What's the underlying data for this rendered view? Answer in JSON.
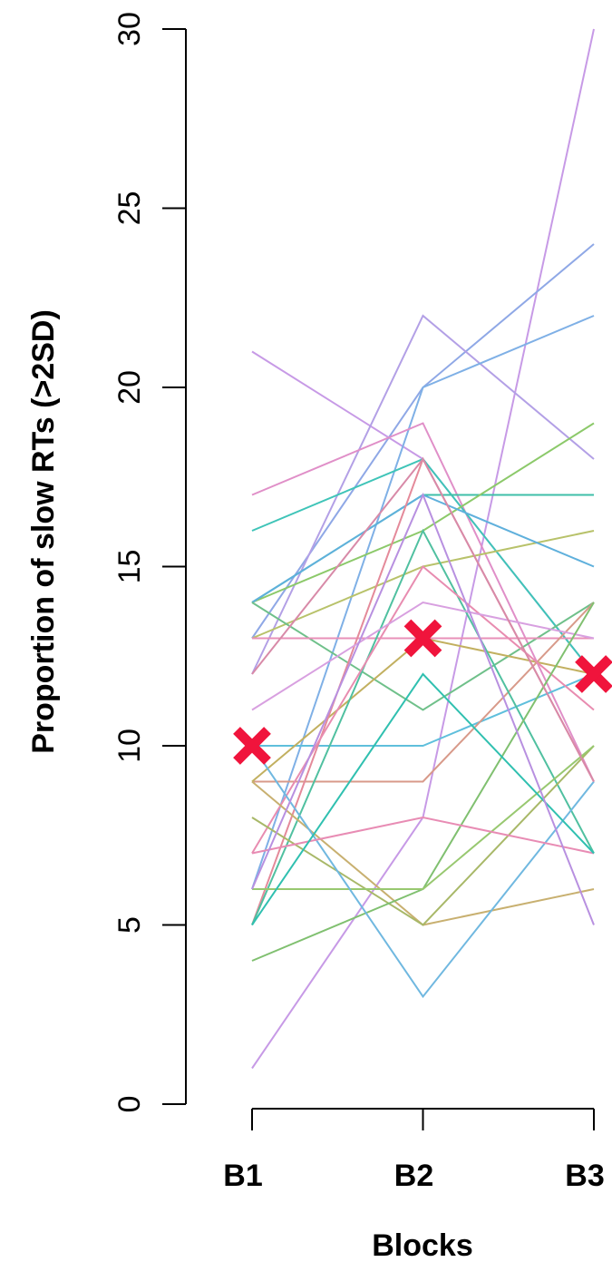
{
  "chart_data": {
    "type": "line",
    "title": "",
    "xlabel": "Blocks",
    "ylabel": "Proportion of slow RTs (>2SD)",
    "categories": [
      "B1",
      "B2",
      "B3"
    ],
    "ylim": [
      0,
      30
    ],
    "yticks": [
      0,
      5,
      10,
      15,
      20,
      25,
      30
    ],
    "grid": false,
    "series": [
      {
        "values": [
          1,
          8,
          30
        ],
        "color": "#c79ae6"
      },
      {
        "values": [
          21,
          18,
          12
        ],
        "color": "#c79ae6"
      },
      {
        "values": [
          13,
          20,
          24
        ],
        "color": "#8fa8e6"
      },
      {
        "values": [
          12,
          22,
          18
        ],
        "color": "#b3a0e6"
      },
      {
        "values": [
          6,
          20,
          22
        ],
        "color": "#7fb0e6"
      },
      {
        "values": [
          17,
          19,
          9
        ],
        "color": "#e08fc8"
      },
      {
        "values": [
          16,
          18,
          12
        ],
        "color": "#3fc4b8"
      },
      {
        "values": [
          14,
          17,
          17
        ],
        "color": "#3fbfa8"
      },
      {
        "values": [
          14,
          16,
          19
        ],
        "color": "#8cc96a"
      },
      {
        "values": [
          13,
          15,
          16
        ],
        "color": "#b8c26a"
      },
      {
        "values": [
          14,
          17,
          15
        ],
        "color": "#5fb0dc"
      },
      {
        "values": [
          14,
          11,
          14
        ],
        "color": "#6fc08a"
      },
      {
        "values": [
          13,
          13,
          13
        ],
        "color": "#e890b8"
      },
      {
        "values": [
          10,
          10,
          12
        ],
        "color": "#5fbfdc"
      },
      {
        "values": [
          9,
          9,
          14
        ],
        "color": "#d89a8a"
      },
      {
        "values": [
          9,
          13,
          12
        ],
        "color": "#c2b060"
      },
      {
        "values": [
          5,
          18,
          9
        ],
        "color": "#e48a9a"
      },
      {
        "values": [
          5,
          16,
          7
        ],
        "color": "#50c0a0"
      },
      {
        "values": [
          7,
          15,
          11
        ],
        "color": "#e88cb0"
      },
      {
        "values": [
          11,
          14,
          13
        ],
        "color": "#d8a0e0"
      },
      {
        "values": [
          9,
          5,
          6
        ],
        "color": "#c8b070"
      },
      {
        "values": [
          8,
          5,
          10
        ],
        "color": "#a8b868"
      },
      {
        "values": [
          4,
          6,
          14
        ],
        "color": "#80c070"
      },
      {
        "values": [
          6,
          6,
          10
        ],
        "color": "#98c870"
      },
      {
        "values": [
          10,
          3,
          9
        ],
        "color": "#70b8e0"
      },
      {
        "values": [
          7,
          8,
          7
        ],
        "color": "#e88cb4"
      },
      {
        "values": [
          5,
          12,
          7
        ],
        "color": "#30c0b0"
      },
      {
        "values": [
          6,
          17,
          5
        ],
        "color": "#b890e0"
      },
      {
        "values": [
          12,
          18,
          9
        ],
        "color": "#d88aa8"
      }
    ],
    "mean": {
      "values": [
        10,
        13,
        12
      ],
      "color": "#f0143c",
      "marker": "x"
    }
  }
}
